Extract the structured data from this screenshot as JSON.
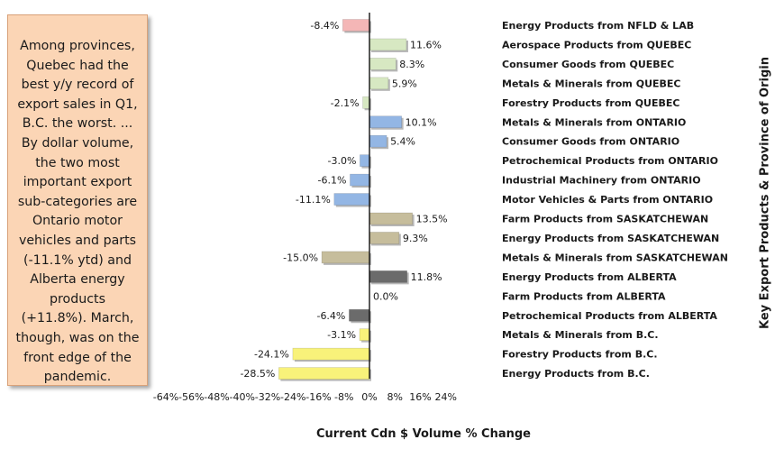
{
  "note": {
    "text": "Among provinces, Quebec had the best y/y record of export sales in Q1, B.C. the worst. ... By dollar volume, the two most important export sub-categories are Ontario motor vehicles and parts (-11.1% ytd) and Alberta energy products (+11.8%). March, though, was on the front edge of the pandemic."
  },
  "chart_data": {
    "type": "bar",
    "orientation": "horizontal",
    "xlabel": "Current Cdn $ Volume % Change",
    "ylabel": "Key Export Products & Province of Origin",
    "xlim": [
      -64,
      24
    ],
    "xticks": [
      -64,
      -56,
      -48,
      -40,
      -32,
      -24,
      -16,
      -8,
      0,
      8,
      16,
      24
    ],
    "tick_suffix": "%",
    "grid": false,
    "categories": [
      "Energy Products from NFLD & LAB",
      "Aerospace Products from QUEBEC",
      "Consumer Goods from QUEBEC",
      "Metals & Minerals from QUEBEC",
      "Forestry Products from QUEBEC",
      "Metals & Minerals from ONTARIO",
      "Consumer Goods from ONTARIO",
      "Petrochemical Products from ONTARIO",
      "Industrial Machinery from ONTARIO",
      "Motor Vehicles & Parts from ONTARIO",
      "Farm Products from SASKATCHEWAN",
      "Energy Products from SASKATCHEWAN",
      "Metals & Minerals from SASKATCHEWAN",
      "Energy Products from ALBERTA",
      "Farm Products from ALBERTA",
      "Petrochemical Products from ALBERTA",
      "Metals & Minerals from B.C.",
      "Forestry Products from B.C.",
      "Energy Products from B.C."
    ],
    "values": [
      -8.4,
      11.6,
      8.3,
      5.9,
      -2.1,
      10.1,
      5.4,
      -3.0,
      -6.1,
      -11.1,
      13.5,
      9.3,
      -15.0,
      11.8,
      0.0,
      -6.4,
      -3.1,
      -24.1,
      -28.5
    ],
    "value_labels": [
      "-8.4%",
      "11.6%",
      "8.3%",
      "5.9%",
      "-2.1%",
      "10.1%",
      "5.4%",
      "-3.0%",
      "-6.1%",
      "-11.1%",
      "13.5%",
      "9.3%",
      "-15.0%",
      "11.8%",
      "0.0%",
      "-6.4%",
      "-3.1%",
      "-24.1%",
      "-28.5%"
    ],
    "colors": [
      "#f4b6b6",
      "#d7e8c2",
      "#d7e8c2",
      "#d7e8c2",
      "#d7e8c2",
      "#93b6e4",
      "#93b6e4",
      "#93b6e4",
      "#93b6e4",
      "#93b6e4",
      "#c6bd9c",
      "#c6bd9c",
      "#c6bd9c",
      "#6b6b6b",
      "#6b6b6b",
      "#6b6b6b",
      "#f8f27a",
      "#f8f27a",
      "#f8f27a"
    ]
  }
}
